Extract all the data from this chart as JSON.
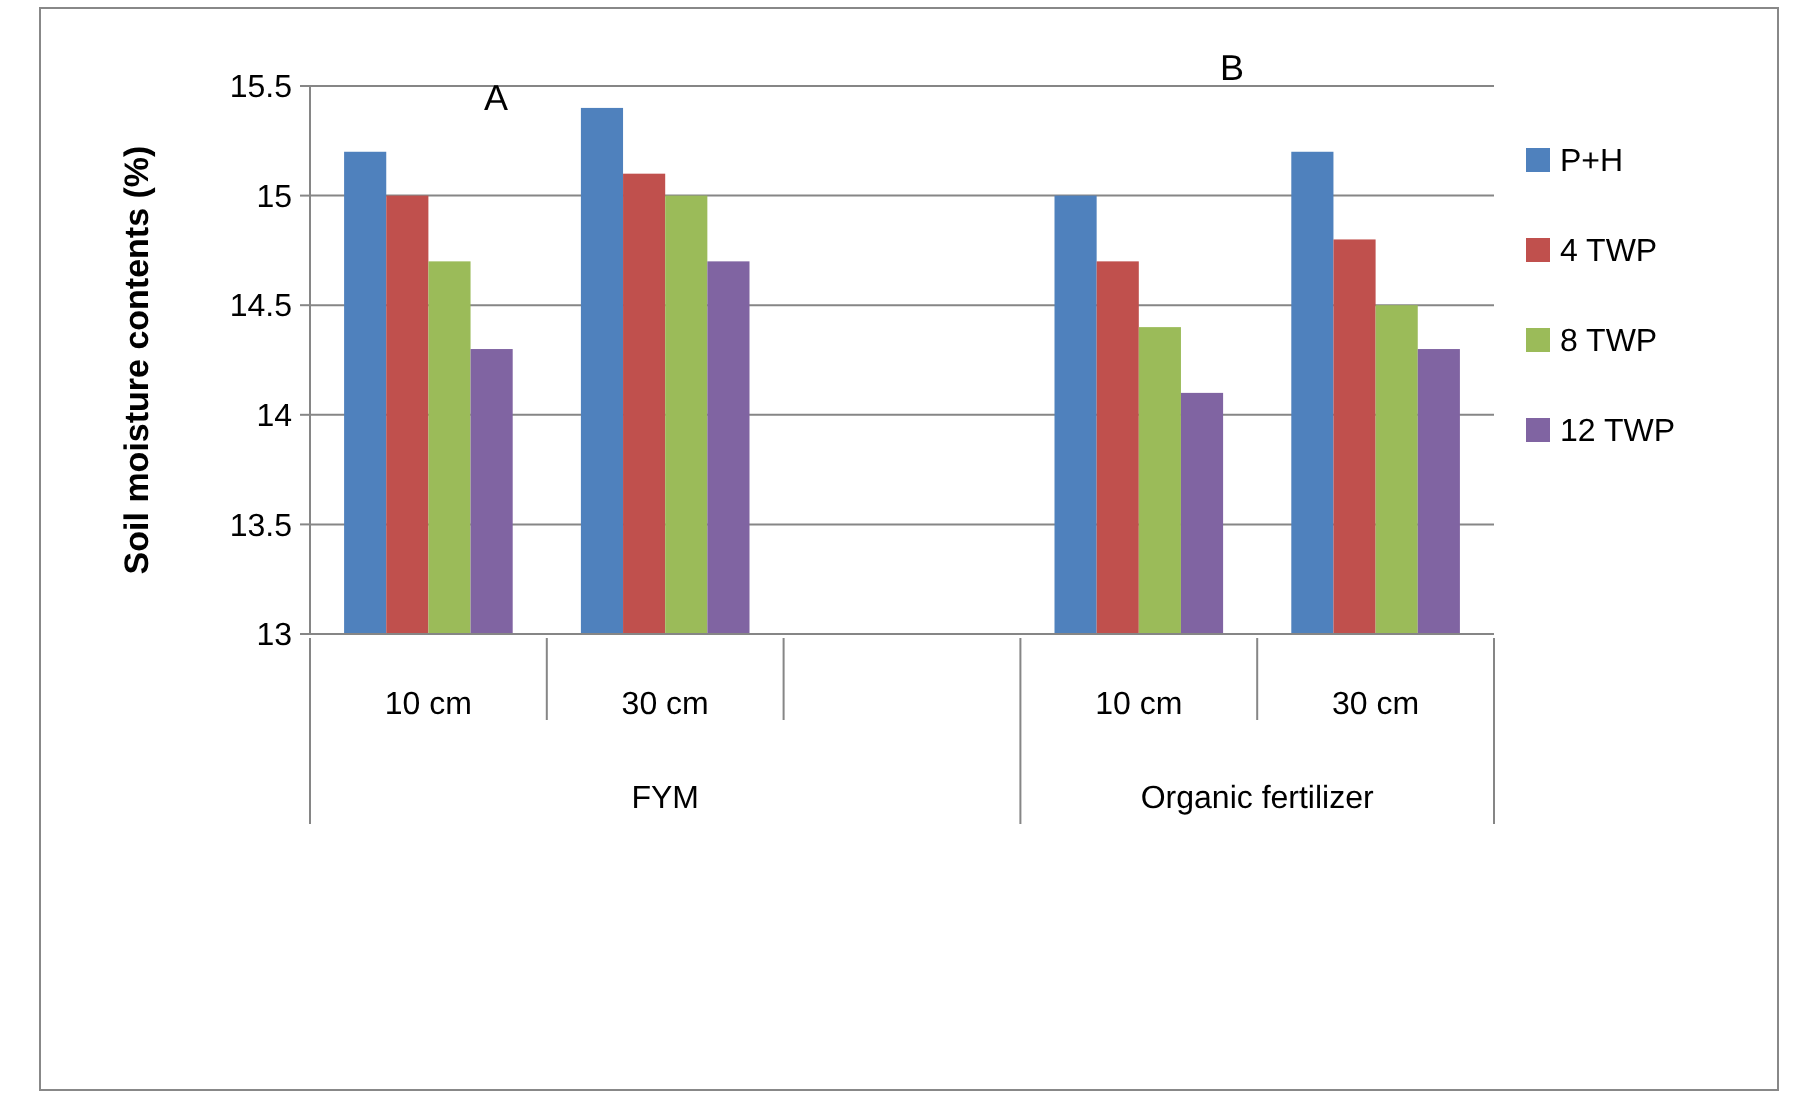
{
  "chart_data": {
    "type": "bar",
    "ylabel": "Soil moisture contents (%)",
    "categories": [
      "10 cm",
      "30 cm",
      null,
      "10 cm",
      "30 cm"
    ],
    "series": [
      {
        "name": "P+H",
        "color": "#4f81bd",
        "values": [
          15.2,
          15.4,
          null,
          15.0,
          15.2
        ]
      },
      {
        "name": "4 TWP",
        "color": "#c0504d",
        "values": [
          15.0,
          15.1,
          null,
          14.7,
          14.8
        ]
      },
      {
        "name": "8 TWP",
        "color": "#9bbb59",
        "values": [
          14.7,
          15.0,
          null,
          14.4,
          14.5
        ]
      },
      {
        "name": "12 TWP",
        "color": "#8064a2",
        "values": [
          14.3,
          14.7,
          null,
          14.1,
          14.3
        ]
      }
    ],
    "ylim": [
      13,
      15.5
    ],
    "yticks": [
      13,
      13.5,
      14,
      14.5,
      15,
      15.5
    ],
    "grid": "y",
    "legend": "right",
    "annotations": [
      "A",
      "B",
      "FYM",
      "Organic fertilizer"
    ]
  }
}
